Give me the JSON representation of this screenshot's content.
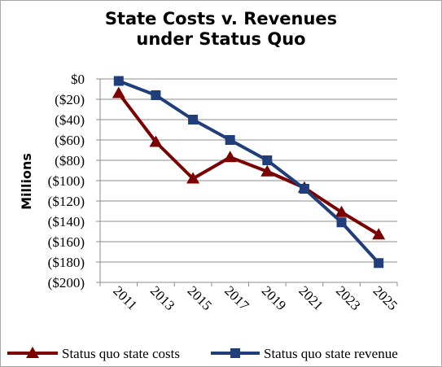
{
  "chart_data": {
    "type": "line",
    "title_lines": [
      "State Costs v. Revenues",
      "under Status Quo"
    ],
    "ylabel": "Millions",
    "xlabel": "",
    "categories": [
      "2011",
      "2013",
      "2015",
      "2017",
      "2019",
      "2021",
      "2023",
      "2025"
    ],
    "y_ticks": [
      0,
      -20,
      -40,
      -60,
      -80,
      -100,
      -120,
      -140,
      -160,
      -180,
      -200
    ],
    "y_tick_labels": [
      "$0",
      "($20)",
      "($40)",
      "($60)",
      "($80)",
      "($100)",
      "($120)",
      "($140)",
      "($160)",
      "($180)",
      "($200)"
    ],
    "ylim": [
      -200,
      0
    ],
    "grid": true,
    "legend_position": "bottom",
    "series": [
      {
        "name": "Status quo state costs",
        "values": [
          -14,
          -62,
          -98,
          -77,
          -91,
          -107,
          -131,
          -153
        ],
        "color": "#7b0000",
        "marker": "triangle"
      },
      {
        "name": "Status quo state revenue",
        "values": [
          -2,
          -16,
          -40,
          -60,
          -80,
          -108,
          -141,
          -181
        ],
        "color": "#1f3e7a",
        "marker": "square"
      }
    ]
  }
}
